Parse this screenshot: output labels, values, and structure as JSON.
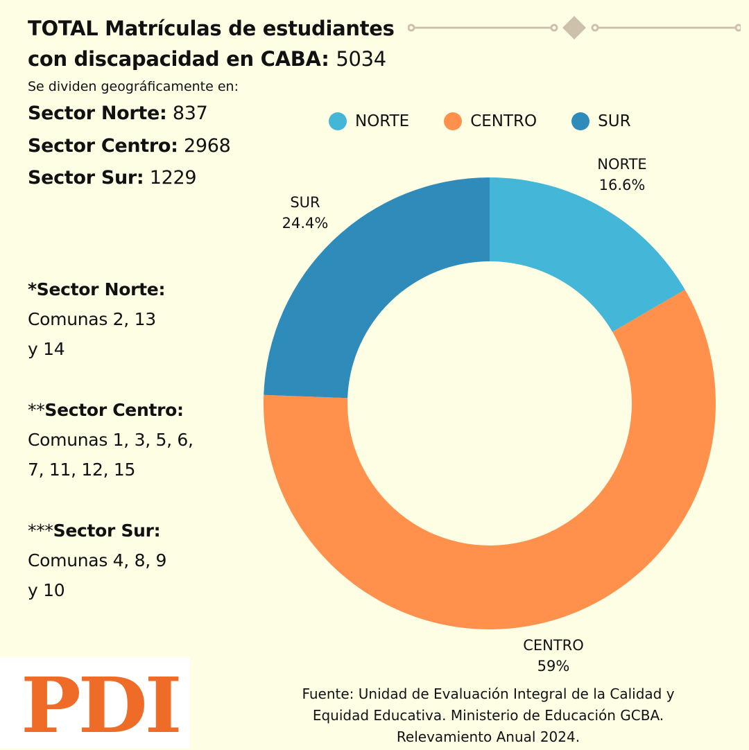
{
  "header": {
    "title_line1": "TOTAL Matrículas de estudiantes",
    "title_line2_label": "con discapacidad en CABA:",
    "title_total": "5034",
    "subtitle": "Se dividen geográficamente en:"
  },
  "sectors": [
    {
      "label": "Sector Norte:",
      "value": "837"
    },
    {
      "label": "Sector Centro:",
      "value": "2968"
    },
    {
      "label": "Sector Sur:",
      "value": "1229"
    }
  ],
  "notes": [
    {
      "stars": "",
      "head": "*Sector Norte:",
      "line1": "Comunas 2, 13",
      "line2": "y 14"
    },
    {
      "stars": "**",
      "head": "Sector Centro:",
      "line1": "Comunas 1, 3, 5, 6,",
      "line2": "7, 11, 12, 15"
    },
    {
      "stars": "***",
      "head": "Sector Sur:",
      "line1": "Comunas 4, 8, 9",
      "line2": "y 10"
    }
  ],
  "source": {
    "line1": "Fuente: Unidad de Evaluación Integral de la Calidad y",
    "line2": "Equidad Educativa. Ministerio de Educación GCBA.",
    "line3": "Relevamiento Anual 2024."
  },
  "logo": {
    "text": "PDI",
    "color": "#ef6c28"
  },
  "colors": {
    "background": "#fdfee4",
    "ornament": "#cdc1aa"
  },
  "chart_data": {
    "type": "pie",
    "variant": "donut",
    "title": "",
    "categories": [
      "NORTE",
      "CENTRO",
      "SUR"
    ],
    "values": [
      16.6,
      59,
      24.4
    ],
    "value_labels": [
      "16.6%",
      "59%",
      "24.4%"
    ],
    "counts": [
      837,
      2968,
      1229
    ],
    "colors": [
      "#44b6d7",
      "#ff914d",
      "#2e8bba"
    ],
    "start_angle": "12 o'clock",
    "direction": "clockwise",
    "legend": {
      "placement": "top",
      "entries": [
        "NORTE",
        "CENTRO",
        "SUR"
      ]
    }
  }
}
